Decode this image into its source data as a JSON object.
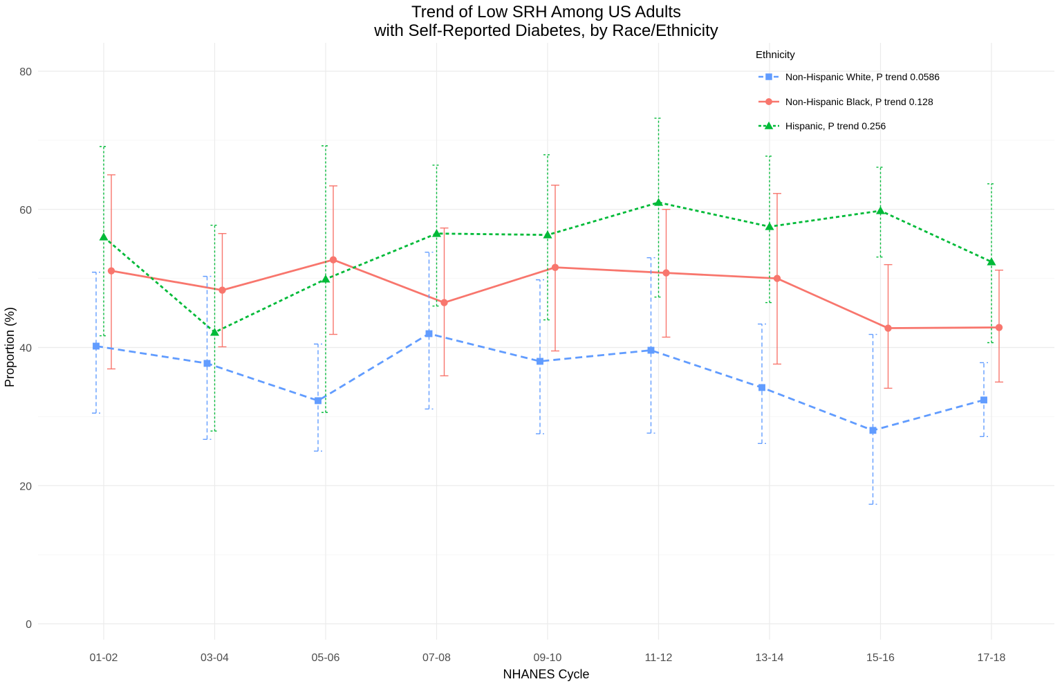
{
  "chart_data": {
    "type": "line",
    "title_line1": "Trend of Low SRH Among US Adults",
    "title_line2": "with Self-Reported Diabetes, by Race/Ethnicity",
    "xlabel": "NHANES Cycle",
    "ylabel": "Proportion (%)",
    "ylim": [
      0,
      80
    ],
    "yticks": [
      "0",
      "20",
      "40",
      "60",
      "80"
    ],
    "ytick_values": [
      0,
      20,
      40,
      60,
      80
    ],
    "x": [
      "01-02",
      "03-04",
      "05-06",
      "07-08",
      "09-10",
      "11-12",
      "13-14",
      "15-16",
      "17-18"
    ],
    "grid": true,
    "legend": {
      "title": "Ethnicity",
      "placement": "top-right"
    },
    "series": [
      {
        "name": "Non-Hispanic White, P trend 0.0586",
        "color": "#619CFF",
        "line_style": "dashed",
        "marker": "square",
        "values": [
          40.2,
          37.7,
          32.3,
          42.0,
          38.0,
          39.6,
          34.2,
          28.0,
          32.4
        ],
        "lower": [
          30.5,
          26.7,
          25.0,
          31.1,
          27.5,
          27.6,
          26.1,
          17.3,
          27.1
        ],
        "upper": [
          50.9,
          50.3,
          40.5,
          53.8,
          49.8,
          53.0,
          43.4,
          41.9,
          37.8
        ]
      },
      {
        "name": "Non-Hispanic Black, P trend 0.128",
        "color": "#F8766D",
        "line_style": "solid",
        "marker": "circle",
        "values": [
          51.1,
          48.3,
          52.7,
          46.5,
          51.6,
          50.8,
          50.0,
          42.8,
          42.9
        ],
        "lower": [
          36.9,
          40.1,
          41.9,
          35.9,
          39.5,
          41.5,
          37.6,
          34.1,
          35.0
        ],
        "upper": [
          65.0,
          56.5,
          63.4,
          57.3,
          63.5,
          60.0,
          62.3,
          52.0,
          51.2
        ]
      },
      {
        "name": "Hispanic, P trend 0.256",
        "color": "#00BA38",
        "line_style": "dotted",
        "marker": "triangle",
        "values": [
          56.0,
          42.2,
          49.9,
          56.5,
          56.3,
          61.0,
          57.5,
          59.8,
          52.4
        ],
        "lower": [
          41.7,
          27.9,
          30.6,
          46.0,
          44.0,
          47.3,
          46.5,
          53.1,
          40.7
        ],
        "upper": [
          69.1,
          57.7,
          69.2,
          66.4,
          67.9,
          73.2,
          67.7,
          66.1,
          63.7
        ]
      }
    ]
  }
}
